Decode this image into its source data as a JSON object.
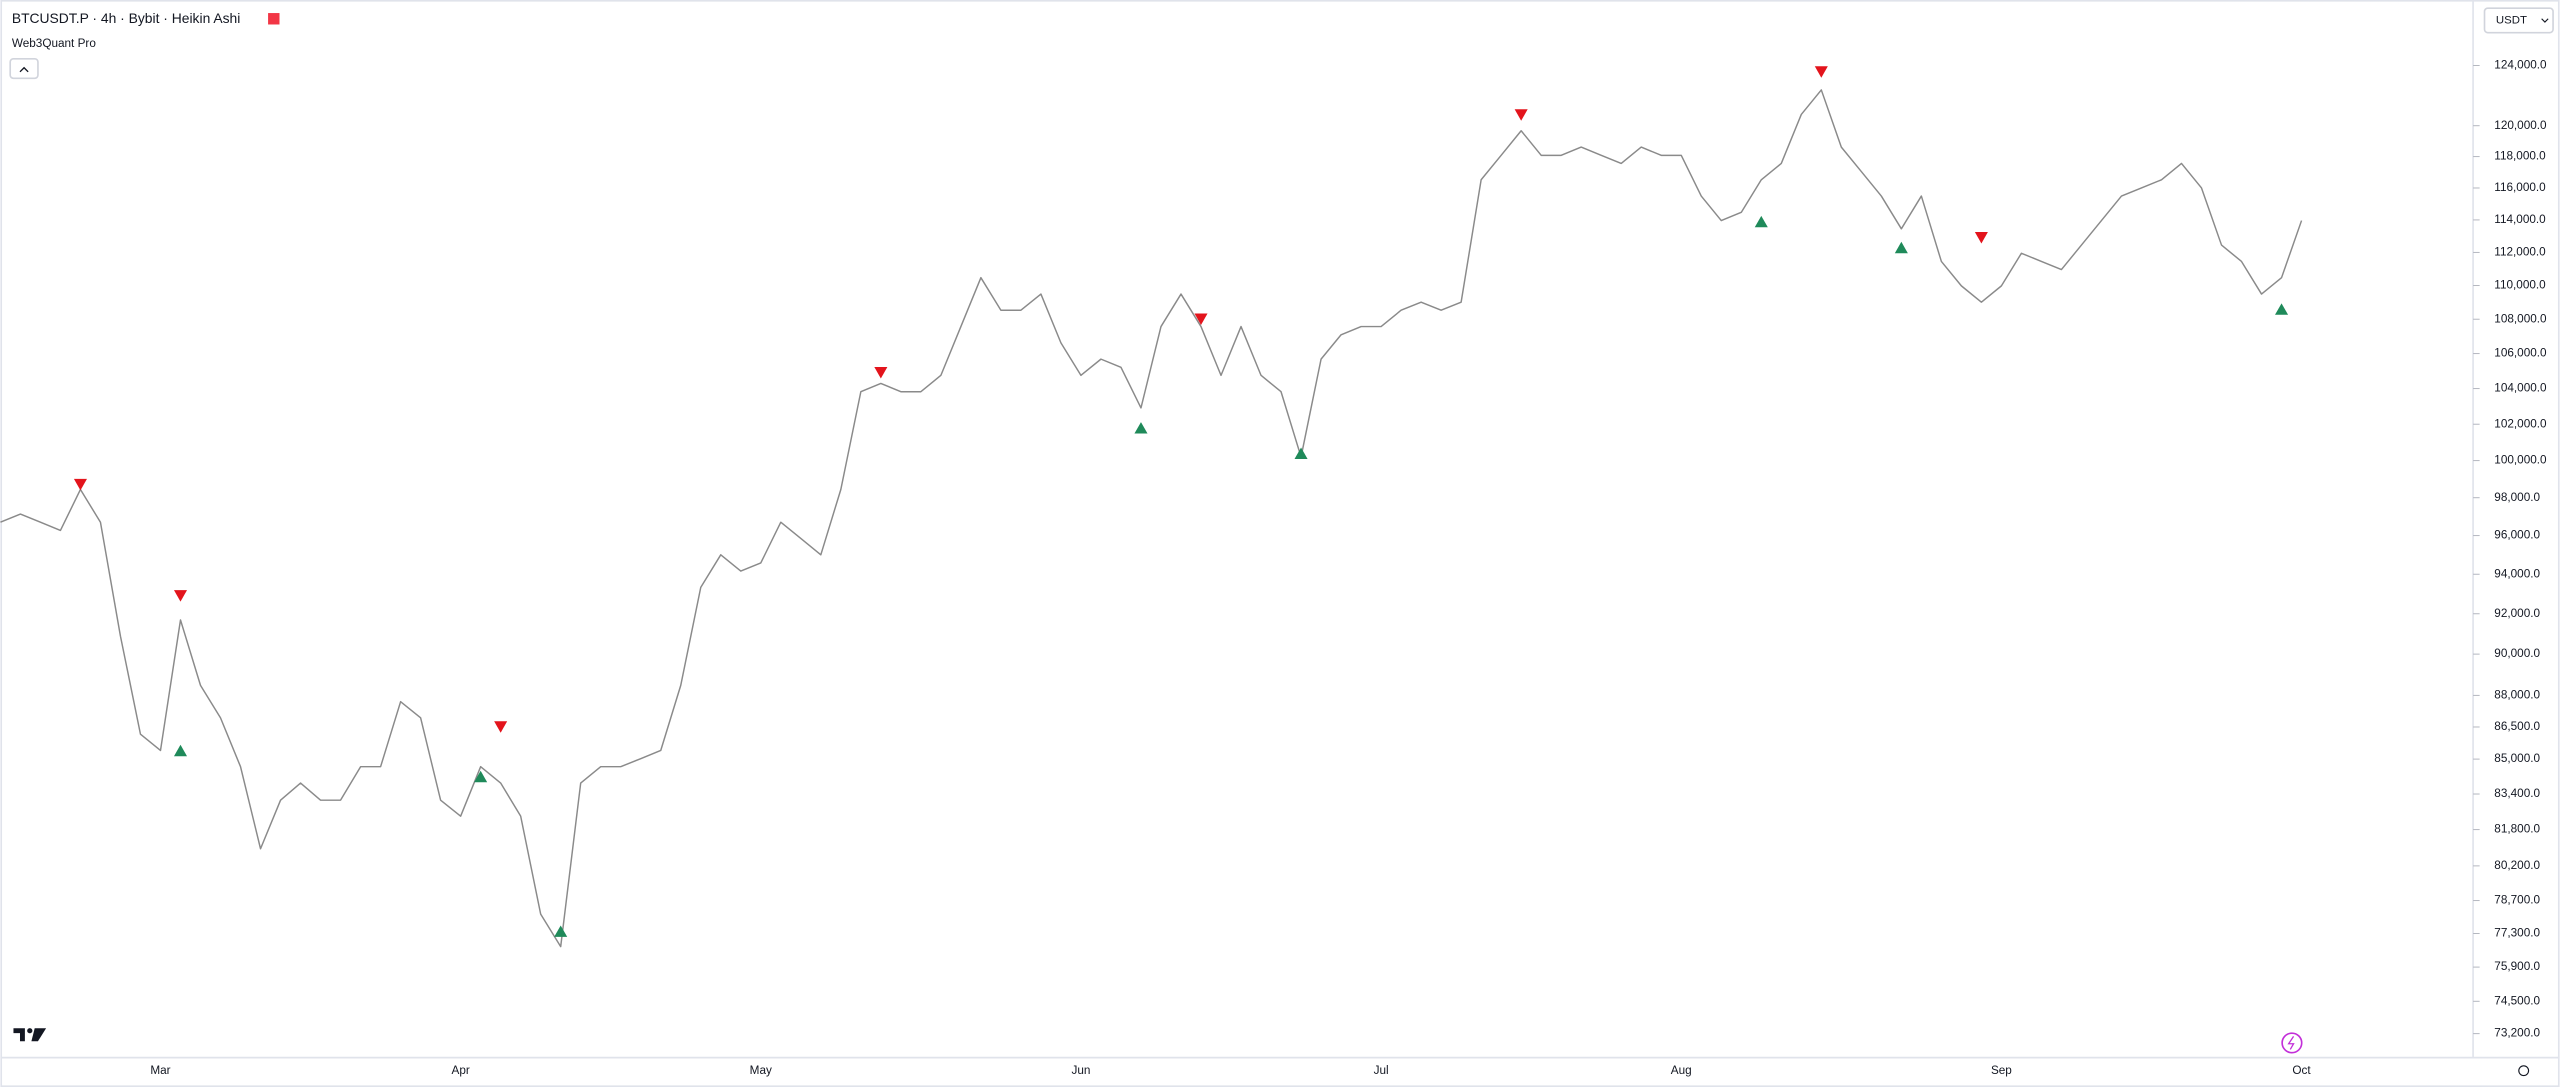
{
  "chart_data": {
    "type": "line",
    "title": "BTCUSDT.P · 4h · Bybit · Heikin Ashi",
    "indicator": "Web3Quant Pro",
    "currency": "USDT",
    "log_scale": true,
    "grid": false,
    "ylim": [
      72250,
      128500
    ],
    "yticks": [
      {
        "value": 124000,
        "label": "124,000.0"
      },
      {
        "value": 120000,
        "label": "120,000.0"
      },
      {
        "value": 118000,
        "label": "118,000.0"
      },
      {
        "value": 116000,
        "label": "116,000.0"
      },
      {
        "value": 114000,
        "label": "114,000.0"
      },
      {
        "value": 112000,
        "label": "112,000.0"
      },
      {
        "value": 110000,
        "label": "110,000.0"
      },
      {
        "value": 108000,
        "label": "108,000.0"
      },
      {
        "value": 106000,
        "label": "106,000.0"
      },
      {
        "value": 104000,
        "label": "104,000.0"
      },
      {
        "value": 102000,
        "label": "102,000.0"
      },
      {
        "value": 100000,
        "label": "100,000.0"
      },
      {
        "value": 98000,
        "label": "98,000.0"
      },
      {
        "value": 96000,
        "label": "96,000.0"
      },
      {
        "value": 94000,
        "label": "94,000.0"
      },
      {
        "value": 92000,
        "label": "92,000.0"
      },
      {
        "value": 90000,
        "label": "90,000.0"
      },
      {
        "value": 88000,
        "label": "88,000.0"
      },
      {
        "value": 86500,
        "label": "86,500.0"
      },
      {
        "value": 85000,
        "label": "85,000.0"
      },
      {
        "value": 83400,
        "label": "83,400.0"
      },
      {
        "value": 81800,
        "label": "81,800.0"
      },
      {
        "value": 80200,
        "label": "80,200.0"
      },
      {
        "value": 78700,
        "label": "78,700.0"
      },
      {
        "value": 77300,
        "label": "77,300.0"
      },
      {
        "value": 75900,
        "label": "75,900.0"
      },
      {
        "value": 74500,
        "label": "74,500.0"
      },
      {
        "value": 73200,
        "label": "73,200.0"
      }
    ],
    "categories": [
      null,
      null,
      null,
      null,
      null,
      null,
      null,
      null,
      "Mar",
      null,
      null,
      null,
      null,
      null,
      null,
      null,
      null,
      null,
      null,
      null,
      null,
      null,
      null,
      "Apr",
      null,
      null,
      null,
      null,
      null,
      null,
      null,
      null,
      null,
      null,
      null,
      null,
      null,
      null,
      "May",
      null,
      null,
      null,
      null,
      null,
      null,
      null,
      null,
      null,
      null,
      null,
      null,
      null,
      null,
      null,
      "Jun",
      null,
      null,
      null,
      null,
      null,
      null,
      null,
      null,
      null,
      null,
      null,
      null,
      null,
      null,
      "Jul",
      null,
      null,
      null,
      null,
      null,
      null,
      null,
      null,
      null,
      null,
      null,
      null,
      null,
      null,
      "Aug",
      null,
      null,
      null,
      null,
      null,
      null,
      null,
      null,
      null,
      null,
      null,
      null,
      null,
      null,
      null,
      "Sep",
      null,
      null,
      null,
      null,
      null,
      null,
      null,
      null,
      null,
      null,
      null,
      null,
      null,
      null,
      "Oct"
    ],
    "series": [
      {
        "color": "#8a8a8a",
        "values": [
          96700,
          97130,
          96700,
          96270,
          98440,
          96700,
          90880,
          86160,
          85400,
          91690,
          88480,
          86930,
          84650,
          80950,
          83120,
          83900,
          83120,
          83120,
          84650,
          84650,
          87700,
          86930,
          83120,
          82400,
          84650,
          83900,
          82400,
          78120,
          76750,
          83900,
          84650,
          84650,
          85020,
          85400,
          88480,
          93330,
          95000,
          94160,
          94580,
          96700,
          95850,
          95000,
          98440,
          103820,
          104290,
          103820,
          103820,
          104750,
          107570,
          110470,
          108530,
          108530,
          109490,
          106620,
          104750,
          105680,
          105210,
          102910,
          107570,
          109490,
          107570,
          104750,
          107570,
          104750,
          103820,
          100200,
          105680,
          107090,
          107570,
          107570,
          108530,
          109010,
          108530,
          109010,
          116520,
          118080,
          119670,
          118080,
          118080,
          118610,
          118080,
          117560,
          118610,
          118080,
          118080,
          115490,
          113960,
          114470,
          116520,
          117560,
          120740,
          122360,
          118610,
          117040,
          115490,
          113450,
          115490,
          111450,
          109980,
          109010,
          109980,
          111950,
          111450,
          110960,
          112450,
          113960,
          115490,
          116000,
          116520,
          117560,
          116000,
          112450,
          111450,
          109490,
          110470,
          113960
        ]
      }
    ],
    "sell_color": "#e3141c",
    "buy_color": "#1f8a5a",
    "sell_signals": [
      null,
      null,
      null,
      null,
      98700,
      null,
      null,
      null,
      null,
      92900,
      null,
      null,
      null,
      null,
      null,
      null,
      null,
      null,
      null,
      null,
      null,
      null,
      null,
      null,
      null,
      86500,
      null,
      null,
      null,
      null,
      null,
      null,
      null,
      null,
      null,
      null,
      null,
      null,
      null,
      null,
      null,
      null,
      null,
      null,
      104900,
      null,
      null,
      null,
      null,
      null,
      null,
      null,
      null,
      null,
      null,
      null,
      null,
      null,
      null,
      null,
      108000,
      null,
      null,
      null,
      null,
      null,
      null,
      null,
      null,
      null,
      null,
      null,
      null,
      null,
      null,
      null,
      120700,
      null,
      null,
      null,
      null,
      null,
      null,
      null,
      null,
      null,
      null,
      null,
      null,
      null,
      null,
      123560,
      null,
      null,
      null,
      null,
      null,
      null,
      null,
      112900,
      null,
      null,
      null,
      null,
      null,
      null,
      null,
      null,
      null,
      null,
      null,
      null,
      null,
      null,
      null,
      null
    ],
    "buy_signals": [
      null,
      null,
      null,
      null,
      null,
      null,
      null,
      null,
      null,
      85400,
      null,
      null,
      null,
      null,
      null,
      null,
      null,
      null,
      null,
      null,
      null,
      null,
      null,
      null,
      84200,
      null,
      null,
      null,
      77400,
      null,
      null,
      null,
      null,
      null,
      null,
      null,
      null,
      null,
      null,
      null,
      null,
      null,
      null,
      null,
      null,
      null,
      null,
      null,
      null,
      null,
      null,
      null,
      null,
      null,
      null,
      null,
      null,
      101800,
      null,
      null,
      null,
      null,
      null,
      null,
      null,
      100400,
      null,
      null,
      null,
      null,
      null,
      null,
      null,
      null,
      null,
      null,
      null,
      null,
      null,
      null,
      null,
      null,
      null,
      null,
      null,
      null,
      null,
      null,
      113900,
      null,
      null,
      null,
      null,
      null,
      null,
      112300,
      null,
      null,
      null,
      null,
      null,
      null,
      null,
      null,
      null,
      null,
      null,
      null,
      null,
      null,
      null,
      null,
      null,
      null,
      108600,
      null
    ]
  }
}
